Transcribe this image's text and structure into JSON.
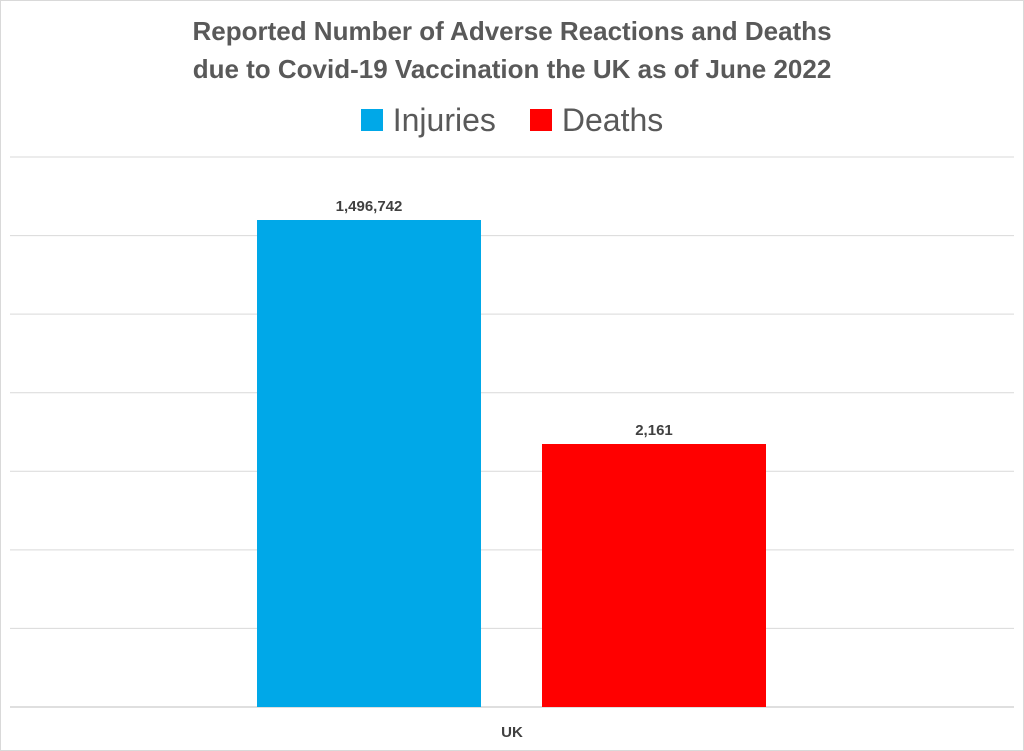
{
  "chart_data": {
    "type": "bar",
    "title_lines": [
      "Reported Number of Adverse Reactions and Deaths",
      "due to Covid-19 Vaccination the UK as of  June 2022"
    ],
    "categories": [
      "UK"
    ],
    "series": [
      {
        "name": "Injuries",
        "values": [
          1496742
        ],
        "value_label": "1,496,742",
        "color": "#00a8e8"
      },
      {
        "name": "Deaths",
        "values": [
          2161
        ],
        "value_label": "2,161",
        "color": "#ff0000"
      }
    ],
    "xlabel": "",
    "ylabel": "",
    "grid": true,
    "legend_position": "top",
    "y_axis_labels_shown": false,
    "note": "bars not drawn to a common linear scale in original"
  }
}
